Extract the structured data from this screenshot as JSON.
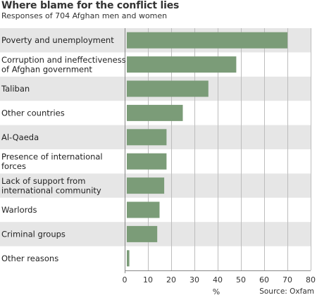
{
  "chart_data": {
    "type": "bar",
    "orientation": "horizontal",
    "title": "Where blame for the conflict lies",
    "subtitle": "Responses of 704 Afghan men and women",
    "categories": [
      "Poverty and unemployment",
      "Corruption and ineffectiveness of Afghan government",
      "Taliban",
      "Other countries",
      "Al-Qaeda",
      "Presence of international forces",
      "Lack of support from international community",
      "Warlords",
      "Criminal groups",
      "Other reasons"
    ],
    "category_lines": [
      [
        "Poverty and unemployment"
      ],
      [
        "Corruption and ineffectiveness",
        "of Afghan government"
      ],
      [
        "Taliban"
      ],
      [
        "Other countries"
      ],
      [
        "Al-Qaeda"
      ],
      [
        "Presence of international",
        "forces"
      ],
      [
        "Lack of support from",
        "international community"
      ],
      [
        "Warlords"
      ],
      [
        "Criminal groups"
      ],
      [
        "Other reasons"
      ]
    ],
    "values": [
      70,
      48,
      36,
      25,
      18,
      18,
      17,
      15,
      14,
      2
    ],
    "xlabel": "%",
    "ylabel": "",
    "xlim": [
      0,
      80
    ],
    "xticks": [
      0,
      10,
      20,
      30,
      40,
      50,
      60,
      70,
      80
    ],
    "grid": true,
    "bar_color": "#7b9c78",
    "stripe_color": "#e6e6e6",
    "grid_color": "#bdbdbd",
    "source": "Source: Oxfam"
  }
}
